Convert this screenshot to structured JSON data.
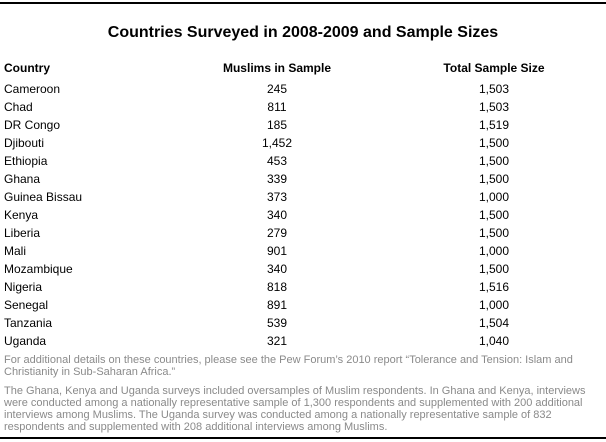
{
  "figure": {
    "title": "Countries Surveyed in 2008-2009 and Sample Sizes"
  },
  "table": {
    "columns": [
      "Country",
      "Muslims in Sample",
      "Total Sample Size"
    ],
    "rows": [
      [
        "Cameroon",
        "245",
        "1,503"
      ],
      [
        "Chad",
        "811",
        "1,503"
      ],
      [
        "DR Congo",
        "185",
        "1,519"
      ],
      [
        "Djibouti",
        "1,452",
        "1,500"
      ],
      [
        "Ethiopia",
        "453",
        "1,500"
      ],
      [
        "Ghana",
        "339",
        "1,500"
      ],
      [
        "Guinea Bissau",
        "373",
        "1,000"
      ],
      [
        "Kenya",
        "340",
        "1,500"
      ],
      [
        "Liberia",
        "279",
        "1,500"
      ],
      [
        "Mali",
        "901",
        "1,000"
      ],
      [
        "Mozambique",
        "340",
        "1,500"
      ],
      [
        "Nigeria",
        "818",
        "1,516"
      ],
      [
        "Senegal",
        "891",
        "1,000"
      ],
      [
        "Tanzania",
        "539",
        "1,504"
      ],
      [
        "Uganda",
        "321",
        "1,040"
      ]
    ]
  },
  "footnotes": [
    "For additional details on these countries, please see the Pew Forum’s 2010 report “Tolerance and Tension: Islam and Christianity in Sub-Saharan Africa.”",
    "The Ghana, Kenya and Uganda surveys included oversamples of Muslim respondents. In Ghana and Kenya, interviews were conducted among a nationally representative sample of 1,300 respondents and supplemented with 200 additional interviews among Muslims. The Uganda survey was conducted among a nationally representative sample of 832 respondents and supplemented with 208 additional interviews among Muslims."
  ],
  "colors": {
    "text": "#000000",
    "footnote": "#8a8a8a",
    "rule": "#000000",
    "background": "#ffffff"
  },
  "chart_data": {
    "type": "table",
    "title": "Countries Surveyed in 2008-2009 and Sample Sizes",
    "columns": [
      "Country",
      "Muslims in Sample",
      "Total Sample Size"
    ],
    "categories": [
      "Cameroon",
      "Chad",
      "DR Congo",
      "Djibouti",
      "Ethiopia",
      "Ghana",
      "Guinea Bissau",
      "Kenya",
      "Liberia",
      "Mali",
      "Mozambique",
      "Nigeria",
      "Senegal",
      "Tanzania",
      "Uganda"
    ],
    "series": [
      {
        "name": "Muslims in Sample",
        "values": [
          245,
          811,
          185,
          1452,
          453,
          339,
          373,
          340,
          279,
          901,
          340,
          818,
          891,
          539,
          321
        ]
      },
      {
        "name": "Total Sample Size",
        "values": [
          1503,
          1503,
          1519,
          1500,
          1500,
          1500,
          1000,
          1500,
          1500,
          1000,
          1500,
          1516,
          1000,
          1504,
          1040
        ]
      }
    ]
  }
}
